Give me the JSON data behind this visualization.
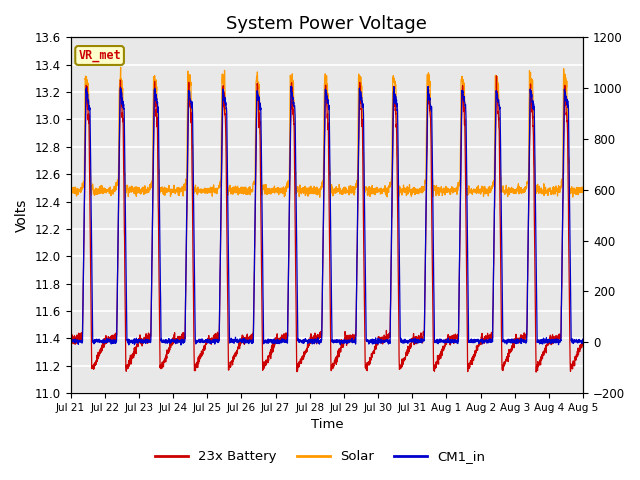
{
  "title": "System Power Voltage",
  "ylabel_left": "Volts",
  "xlabel": "Time",
  "ylim_left": [
    11.0,
    13.6
  ],
  "ylim_right": [
    -200,
    1200
  ],
  "yticks_left": [
    11.0,
    11.2,
    11.4,
    11.6,
    11.8,
    12.0,
    12.2,
    12.4,
    12.6,
    12.8,
    13.0,
    13.2,
    13.4,
    13.6
  ],
  "yticks_right": [
    -200,
    0,
    200,
    400,
    600,
    800,
    1000,
    1200
  ],
  "background_color": "#e8e8e8",
  "grid_color": "#ffffff",
  "title_fontsize": 13,
  "legend_labels": [
    "23x Battery",
    "Solar",
    "CM1_in"
  ],
  "legend_colors": [
    "#cc0000",
    "#ff9900",
    "#0000cc"
  ],
  "vr_met_text": "VR_met",
  "vr_met_color": "#cc0000",
  "vr_met_border": "#998800",
  "vr_met_bg": "#ffffcc",
  "x_tick_labels": [
    "Jul 21",
    "Jul 22",
    "Jul 23",
    "Jul 24",
    "Jul 25",
    "Jul 26",
    "Jul 27",
    "Jul 28",
    "Jul 29",
    "Jul 30",
    "Jul 31",
    "Aug 1",
    "Aug 2",
    "Aug 3",
    "Aug 4",
    "Aug 5"
  ]
}
